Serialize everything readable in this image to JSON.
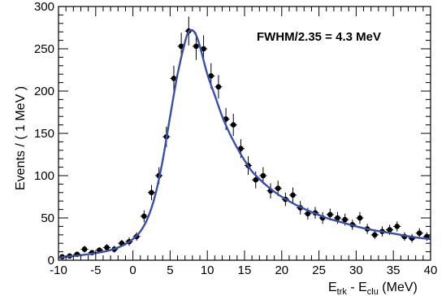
{
  "chart_data": {
    "type": "scatter",
    "title": "",
    "xlabel": {
      "main": "E",
      "sub1": "trk",
      "mid": " - E",
      "sub2": "clu",
      "tail": " (MeV)"
    },
    "ylabel": "Events / ( 1 MeV )",
    "xlim": [
      -10,
      40
    ],
    "ylim": [
      0,
      300
    ],
    "x_ticks": [
      "-10",
      "-5",
      "0",
      "5",
      "10",
      "15",
      "20",
      "25",
      "30",
      "35",
      "40"
    ],
    "y_ticks": [
      "0",
      "50",
      "100",
      "150",
      "200",
      "250",
      "300"
    ],
    "annotation": "FWHM/2.35 =  4.3 MeV",
    "grid": false,
    "colors": {
      "points": "#000000",
      "fit": "#3b4fa8",
      "axes": "#000000"
    },
    "series": [
      {
        "kind": "data-points-with-errors",
        "x": [
          -9.5,
          -8.5,
          -7.5,
          -6.5,
          -5.5,
          -4.5,
          -3.5,
          -2.5,
          -1.5,
          -0.5,
          0.5,
          1.5,
          2.5,
          3.5,
          4.5,
          5.5,
          6.5,
          7.5,
          8.5,
          9.5,
          10.5,
          11.5,
          12.5,
          13.5,
          14.5,
          15.5,
          16.5,
          17.5,
          18.5,
          19.5,
          20.5,
          21.5,
          22.5,
          23.5,
          24.5,
          25.5,
          26.5,
          27.5,
          28.5,
          29.5,
          30.5,
          31.5,
          32.5,
          33.5,
          34.5,
          35.5,
          36.5,
          37.5,
          38.5,
          39.5
        ],
        "y": [
          4,
          5,
          7,
          13,
          9,
          12,
          15,
          13,
          20,
          22,
          28,
          52,
          80,
          100,
          146,
          215,
          253,
          271,
          253,
          250,
          218,
          205,
          167,
          160,
          132,
          112,
          95,
          100,
          82,
          85,
          72,
          77,
          62,
          55,
          56,
          50,
          54,
          50,
          48,
          42,
          50,
          37,
          30,
          34,
          36,
          40,
          28,
          26,
          32,
          28
        ],
        "err": [
          2,
          2,
          3,
          4,
          3,
          3,
          4,
          4,
          4,
          5,
          5,
          7,
          9,
          10,
          12,
          15,
          16,
          17,
          16,
          16,
          15,
          14,
          13,
          13,
          11,
          11,
          10,
          10,
          9,
          9,
          8,
          9,
          8,
          7,
          7,
          7,
          7,
          7,
          7,
          6,
          7,
          6,
          5,
          6,
          6,
          6,
          5,
          5,
          6,
          5
        ]
      },
      {
        "kind": "fit-curve",
        "x": [
          -10,
          -8,
          -6,
          -4,
          -3,
          -2,
          -1,
          0,
          1,
          2,
          3,
          4,
          5,
          6,
          7,
          7.5,
          8,
          8.5,
          9,
          10,
          11,
          12,
          13,
          14,
          15,
          16,
          17,
          18,
          19,
          20,
          22,
          24,
          26,
          28,
          30,
          32,
          34,
          36,
          38,
          40
        ],
        "y": [
          3,
          5,
          7,
          10,
          12,
          15,
          19,
          25,
          34,
          50,
          77,
          118,
          170,
          220,
          258,
          270,
          272,
          266,
          253,
          220,
          195,
          170,
          150,
          133,
          118,
          105,
          96,
          88,
          81,
          75,
          65,
          57,
          50,
          45,
          40,
          36,
          33,
          30,
          27,
          25
        ]
      }
    ]
  }
}
